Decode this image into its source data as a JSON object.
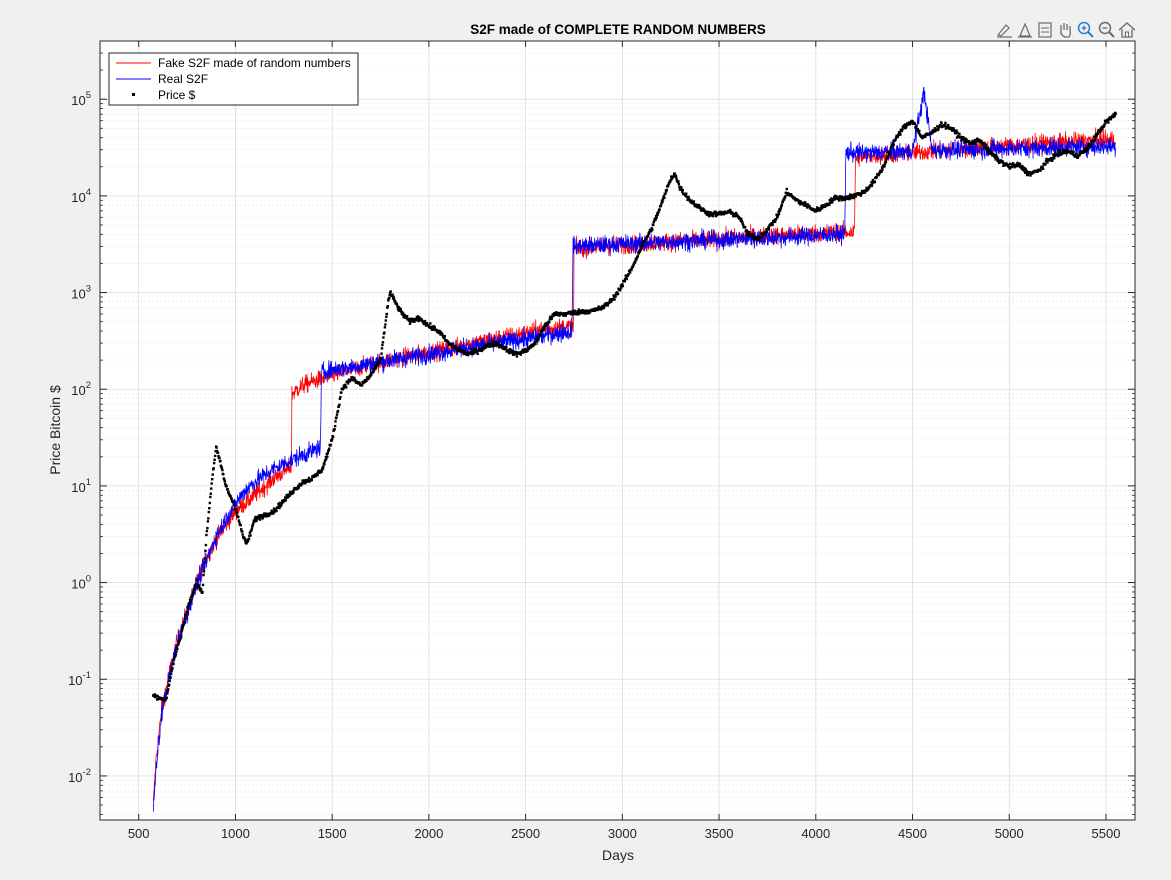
{
  "toolbar": {
    "tools": [
      {
        "name": "brush-icon",
        "label": ""
      },
      {
        "name": "datatip-icon",
        "label": ""
      },
      {
        "name": "insert-legend-icon",
        "label": ""
      },
      {
        "name": "pan-hand-icon",
        "label": ""
      },
      {
        "name": "zoom-in-icon",
        "label": ""
      },
      {
        "name": "zoom-out-icon",
        "label": ""
      },
      {
        "name": "home-icon",
        "label": ""
      }
    ]
  },
  "colors": {
    "figure_bg": "#f0f0f0",
    "axes_bg": "#ffffff",
    "grid": "#e6e6e6",
    "fake_series": "#ff0000",
    "real_series": "#0000ff",
    "price_series": "#000000"
  },
  "chart_data": {
    "type": "line",
    "title": "S2F made of COMPLETE RANDOM NUMBERS",
    "xlabel": "Days",
    "ylabel": "Price Bitcoin $",
    "xlim": [
      300,
      5650
    ],
    "ylim": [
      0.0035,
      400000
    ],
    "yscale": "log",
    "grid": true,
    "minor_grid": true,
    "legend_position": "top-left",
    "xticks": [
      500,
      1000,
      1500,
      2000,
      2500,
      3000,
      3500,
      4000,
      4500,
      5000,
      5500
    ],
    "yticks": [
      {
        "value": 0.01,
        "base": "10",
        "exp": "-2"
      },
      {
        "value": 0.1,
        "base": "10",
        "exp": "-1"
      },
      {
        "value": 1,
        "base": "10",
        "exp": "0"
      },
      {
        "value": 10,
        "base": "10",
        "exp": "1"
      },
      {
        "value": 100,
        "base": "10",
        "exp": "2"
      },
      {
        "value": 1000,
        "base": "10",
        "exp": "3"
      },
      {
        "value": 10000,
        "base": "10",
        "exp": "4"
      },
      {
        "value": 100000,
        "base": "10",
        "exp": "5"
      }
    ],
    "series": [
      {
        "name": "Fake S2F made of random numbers",
        "style": "line",
        "color": "#ff0000",
        "x": [
          575,
          590,
          620,
          660,
          700,
          750,
          800,
          850,
          900,
          950,
          1000,
          1100,
          1200,
          1290,
          1292,
          1350,
          1400,
          1500,
          1600,
          1700,
          1800,
          1900,
          2000,
          2100,
          2200,
          2300,
          2400,
          2500,
          2600,
          2748,
          2750,
          2800,
          2900,
          3000,
          3100,
          3200,
          3300,
          3400,
          3500,
          3600,
          3700,
          3800,
          3900,
          4000,
          4100,
          4200,
          4205,
          4300,
          4400,
          4500,
          4600,
          4700,
          4800,
          4900,
          5000,
          5100,
          5200,
          5300,
          5400,
          5500,
          5550
        ],
        "y": [
          0.005,
          0.015,
          0.05,
          0.12,
          0.25,
          0.5,
          1.0,
          1.8,
          2.8,
          4.0,
          5.5,
          8.0,
          12.0,
          16.0,
          90.0,
          110.0,
          120.0,
          140.0,
          160.0,
          180.0,
          200.0,
          220.0,
          240.0,
          260.0,
          290.0,
          320.0,
          350.0,
          380.0,
          420.0,
          450.0,
          2800.0,
          2900.0,
          3000.0,
          3100.0,
          3200.0,
          3300.0,
          3400.0,
          3500.0,
          3600.0,
          3700.0,
          3800.0,
          3900.0,
          4000.0,
          4100.0,
          4200.0,
          4200.0,
          25000.0,
          26000.0,
          27000.0,
          28000.0,
          29000.0,
          30000.0,
          31000.0,
          32000.0,
          33000.0,
          34000.0,
          35000.0,
          36000.0,
          37000.0,
          38000.0,
          38000.0
        ]
      },
      {
        "name": "Real S2F",
        "style": "line",
        "color": "#0000ff",
        "x": [
          575,
          590,
          620,
          660,
          700,
          750,
          800,
          850,
          900,
          950,
          1000,
          1050,
          1100,
          1150,
          1200,
          1250,
          1300,
          1350,
          1400,
          1440,
          1445,
          1500,
          1600,
          1700,
          1800,
          1900,
          2000,
          2100,
          2200,
          2300,
          2400,
          2500,
          2600,
          2740,
          2745,
          2800,
          2900,
          3000,
          3100,
          3200,
          3300,
          3400,
          3500,
          3600,
          3700,
          3800,
          3900,
          4000,
          4100,
          4150,
          4155,
          4200,
          4300,
          4400,
          4500,
          4560,
          4600,
          4700,
          4800,
          4900,
          5000,
          5100,
          5200,
          5300,
          5400,
          5500,
          5550
        ],
        "y": [
          0.004,
          0.012,
          0.045,
          0.11,
          0.24,
          0.48,
          0.95,
          1.7,
          3.0,
          4.5,
          6.5,
          9.0,
          11.0,
          13.0,
          15.0,
          17.0,
          19.0,
          21.0,
          23.0,
          25.0,
          150.0,
          160.0,
          170.0,
          185.0,
          200.0,
          215.0,
          230.0,
          250.0,
          270.0,
          290.0,
          310.0,
          330.0,
          360.0,
          400.0,
          3000.0,
          3050.0,
          3100.0,
          3200.0,
          3250.0,
          3300.0,
          3400.0,
          3450.0,
          3500.0,
          3600.0,
          3650.0,
          3700.0,
          3800.0,
          3900.0,
          4000.0,
          4000.0,
          28000.0,
          28000.0,
          28000.0,
          28500.0,
          29000.0,
          120000.0,
          29500.0,
          30000.0,
          30000.0,
          30500.0,
          31000.0,
          31000.0,
          31500.0,
          32000.0,
          32000.0,
          32500.0,
          32500.0
        ]
      },
      {
        "name": "Price $",
        "style": "points",
        "color": "#000000",
        "x": [
          575,
          600,
          640,
          680,
          720,
          760,
          800,
          830,
          850,
          880,
          900,
          930,
          950,
          1000,
          1040,
          1060,
          1100,
          1150,
          1200,
          1250,
          1300,
          1350,
          1400,
          1450,
          1500,
          1550,
          1600,
          1650,
          1700,
          1750,
          1790,
          1800,
          1850,
          1900,
          1950,
          2000,
          2050,
          2100,
          2150,
          2200,
          2250,
          2300,
          2350,
          2400,
          2450,
          2500,
          2550,
          2600,
          2650,
          2700,
          2750,
          2800,
          2850,
          2900,
          2950,
          3000,
          3050,
          3100,
          3150,
          3200,
          3250,
          3270,
          3300,
          3350,
          3400,
          3450,
          3500,
          3550,
          3600,
          3650,
          3700,
          3750,
          3800,
          3850,
          3900,
          3950,
          4000,
          4050,
          4100,
          4150,
          4200,
          4250,
          4300,
          4350,
          4400,
          4450,
          4500,
          4550,
          4600,
          4650,
          4700,
          4750,
          4800,
          4850,
          4900,
          4950,
          5000,
          5050,
          5100,
          5150,
          5200,
          5250,
          5300,
          5350,
          5400,
          5450,
          5500,
          5550
        ],
        "y": [
          0.07,
          0.065,
          0.06,
          0.15,
          0.3,
          0.6,
          1.0,
          0.8,
          3.0,
          12.0,
          25.0,
          15.0,
          10.0,
          6.0,
          3.0,
          2.5,
          4.5,
          5.0,
          5.5,
          7.0,
          9.0,
          11.0,
          12.0,
          15.0,
          30.0,
          100.0,
          130.0,
          110.0,
          140.0,
          200.0,
          800.0,
          1000.0,
          650.0,
          500.0,
          550.0,
          450.0,
          400.0,
          300.0,
          260.0,
          230.0,
          250.0,
          280.0,
          300.0,
          260.0,
          230.0,
          250.0,
          300.0,
          450.0,
          600.0,
          600.0,
          620.0,
          640.0,
          650.0,
          700.0,
          850.0,
          1200.0,
          1800.0,
          3000.0,
          4500.0,
          8000.0,
          15000.0,
          17000.0,
          12000.0,
          9000.0,
          7500.0,
          6500.0,
          6500.0,
          6800.0,
          6200.0,
          4000.0,
          3600.0,
          4500.0,
          6000.0,
          11000.0,
          9000.0,
          8000.0,
          7000.0,
          8000.0,
          9500.0,
          9500.0,
          10000.0,
          11000.0,
          14000.0,
          20000.0,
          35000.0,
          50000.0,
          60000.0,
          40000.0,
          45000.0,
          55000.0,
          50000.0,
          40000.0,
          35000.0,
          38000.0,
          28000.0,
          23000.0,
          20000.0,
          21000.0,
          17000.0,
          18000.0,
          23000.0,
          27000.0,
          29000.0,
          26000.0,
          30000.0,
          42000.0,
          58000.0,
          70000.0
        ]
      }
    ]
  }
}
